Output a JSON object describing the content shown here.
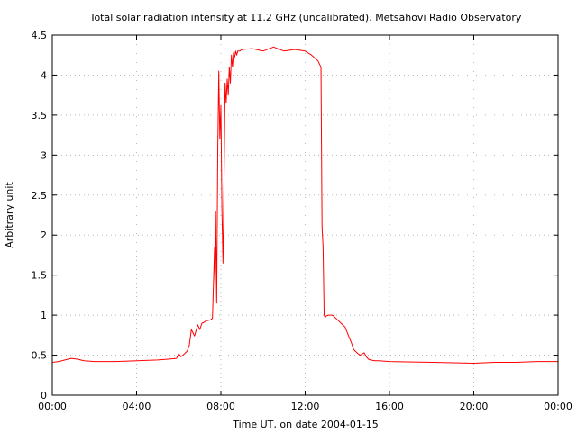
{
  "chart_data": {
    "type": "line",
    "title": "Total solar radiation intensity at 11.2 GHz (uncalibrated). Metsähovi Radio Observatory",
    "xlabel": "Time UT, on date 2004-01-15",
    "ylabel": "Arbitrary unit",
    "xlim": [
      0,
      24
    ],
    "ylim": [
      0,
      4.5
    ],
    "x_ticks": [
      0,
      4,
      8,
      12,
      16,
      20,
      24
    ],
    "x_tick_labels": [
      "00:00",
      "04:00",
      "08:00",
      "12:00",
      "16:00",
      "20:00",
      "00:00"
    ],
    "y_ticks": [
      0,
      0.5,
      1,
      1.5,
      2,
      2.5,
      3,
      3.5,
      4,
      4.5
    ],
    "y_tick_labels": [
      "0",
      "0.5",
      "1",
      "1.5",
      "2",
      "2.5",
      "3",
      "3.5",
      "4",
      "4.5"
    ],
    "grid": true,
    "series": [
      {
        "color": "#ff0000",
        "x": [
          0,
          0.3,
          0.6,
          0.9,
          1.2,
          1.5,
          2,
          3,
          4,
          5,
          5.5,
          5.9,
          6.0,
          6.1,
          6.2,
          6.4,
          6.5,
          6.6,
          6.75,
          6.9,
          7.0,
          7.1,
          7.2,
          7.3,
          7.5,
          7.6,
          7.7,
          7.72,
          7.75,
          7.8,
          7.85,
          7.9,
          7.95,
          8.0,
          8.05,
          8.1,
          8.15,
          8.2,
          8.25,
          8.3,
          8.35,
          8.4,
          8.45,
          8.5,
          8.55,
          8.6,
          8.65,
          8.7,
          8.75,
          8.8,
          8.9,
          9.0,
          9.5,
          10,
          10.5,
          11,
          11.5,
          12,
          12.3,
          12.6,
          12.75,
          12.8,
          12.85,
          12.9,
          12.95,
          13.0,
          13.1,
          13.3,
          13.5,
          13.7,
          13.9,
          14.0,
          14.2,
          14.3,
          14.5,
          14.6,
          14.8,
          14.9,
          15.0,
          15.1,
          15.3,
          15.5,
          16,
          18,
          20,
          21,
          22,
          23,
          24
        ],
        "values": [
          0.41,
          0.42,
          0.44,
          0.46,
          0.45,
          0.43,
          0.42,
          0.42,
          0.43,
          0.44,
          0.45,
          0.46,
          0.52,
          0.48,
          0.5,
          0.55,
          0.62,
          0.82,
          0.74,
          0.88,
          0.82,
          0.9,
          0.91,
          0.93,
          0.94,
          0.96,
          1.85,
          1.4,
          2.3,
          1.15,
          3.0,
          4.05,
          3.2,
          3.62,
          2.3,
          1.65,
          2.7,
          3.9,
          3.65,
          3.95,
          3.75,
          4.1,
          3.9,
          4.25,
          4.1,
          4.28,
          4.22,
          4.3,
          4.25,
          4.3,
          4.3,
          4.32,
          4.33,
          4.3,
          4.35,
          4.3,
          4.32,
          4.3,
          4.25,
          4.18,
          4.1,
          2.1,
          1.85,
          1.0,
          0.97,
          0.99,
          1.0,
          1.0,
          0.95,
          0.9,
          0.85,
          0.78,
          0.65,
          0.57,
          0.52,
          0.5,
          0.53,
          0.48,
          0.45,
          0.44,
          0.43,
          0.43,
          0.42,
          0.41,
          0.4,
          0.41,
          0.41,
          0.42,
          0.42
        ]
      }
    ]
  }
}
